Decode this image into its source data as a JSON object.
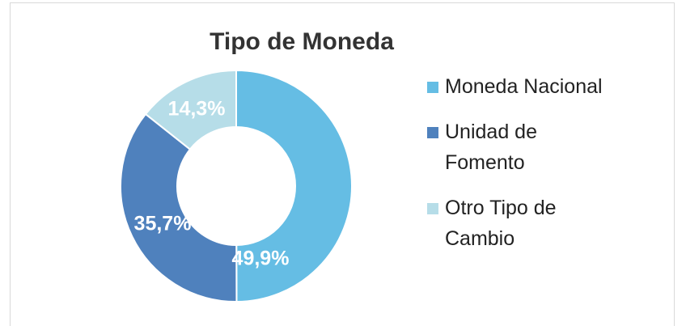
{
  "chart_data": {
    "type": "donut",
    "title": "Tipo de Moneda",
    "categories": [
      "Moneda Nacional",
      "Unidad de Fomento",
      "Otro Tipo de Cambio"
    ],
    "values": [
      49.9,
      35.7,
      14.3
    ],
    "value_labels": [
      "49,9%",
      "35,7%",
      "14,3%"
    ],
    "colors": [
      "#65bde4",
      "#4f81bd",
      "#b6dde8"
    ],
    "legend": "right"
  }
}
